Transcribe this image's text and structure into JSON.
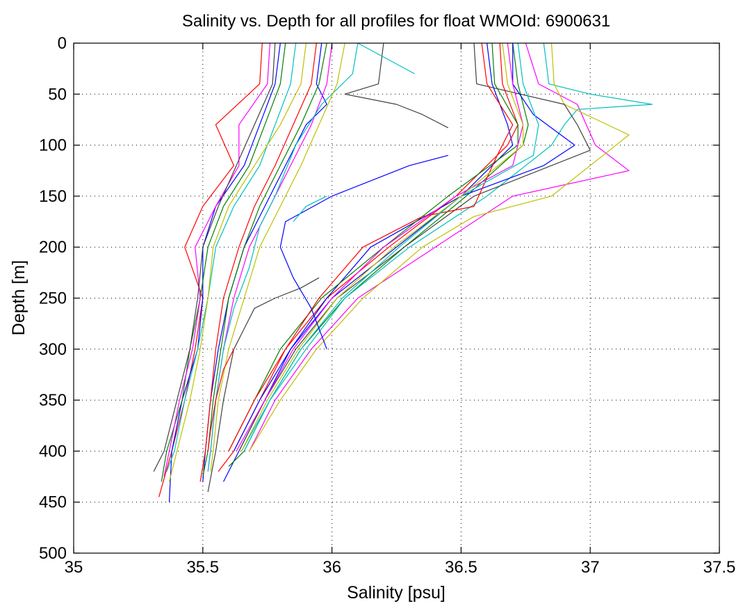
{
  "chart_data": {
    "type": "line",
    "title": "Salinity vs. Depth for all profiles for float WMOId: 6900631",
    "xlabel": "Salinity [psu]",
    "ylabel": "Depth [m]",
    "xlim": [
      35,
      37.5
    ],
    "ylim": [
      0,
      500
    ],
    "y_reversed": true,
    "grid": true,
    "x_ticks": [
      "35",
      "35.5",
      "36",
      "36.5",
      "37",
      "37.5"
    ],
    "y_ticks": [
      "0",
      "50",
      "100",
      "150",
      "200",
      "250",
      "300",
      "350",
      "400",
      "450",
      "500"
    ],
    "colors": [
      "#ff0000",
      "#0000ff",
      "#008000",
      "#ff00ff",
      "#00bfbf",
      "#bfbf00",
      "#404040"
    ],
    "series_note": "approximate digitized profiles (depth m, salinity psu)",
    "series": [
      {
        "color": "#ff0000",
        "depth": [
          0,
          40,
          80,
          120,
          160,
          200,
          250,
          300,
          350,
          400,
          445
        ],
        "sal": [
          35.73,
          35.72,
          35.55,
          35.62,
          35.5,
          35.43,
          35.5,
          35.47,
          35.43,
          35.38,
          35.33
        ]
      },
      {
        "color": "#0000ff",
        "depth": [
          0,
          40,
          80,
          120,
          160,
          200,
          250,
          300,
          350,
          400,
          450
        ],
        "sal": [
          35.8,
          35.78,
          35.72,
          35.66,
          35.55,
          35.5,
          35.5,
          35.48,
          35.42,
          35.38,
          35.37
        ]
      },
      {
        "color": "#008000",
        "depth": [
          0,
          40,
          80,
          120,
          160,
          200,
          250,
          300,
          350,
          400,
          430
        ],
        "sal": [
          35.82,
          35.8,
          35.74,
          35.68,
          35.58,
          35.52,
          35.49,
          35.45,
          35.42,
          35.36,
          35.34
        ]
      },
      {
        "color": "#ff00ff",
        "depth": [
          0,
          40,
          80,
          120,
          160,
          200,
          250,
          300,
          350,
          400,
          425
        ],
        "sal": [
          35.76,
          35.75,
          35.64,
          35.64,
          35.55,
          35.47,
          35.49,
          35.46,
          35.41,
          35.37,
          35.35
        ]
      },
      {
        "color": "#00bfbf",
        "depth": [
          0,
          40,
          80,
          120,
          160,
          200,
          250,
          300,
          350,
          400,
          420
        ],
        "sal": [
          35.86,
          35.84,
          35.78,
          35.72,
          35.62,
          35.55,
          35.52,
          35.48,
          35.43,
          35.39,
          35.36
        ]
      },
      {
        "color": "#bfbf00",
        "depth": [
          0,
          40,
          80,
          120,
          160,
          200,
          250,
          300,
          350,
          400,
          430
        ],
        "sal": [
          35.9,
          35.88,
          35.8,
          35.7,
          35.6,
          35.54,
          35.52,
          35.49,
          35.45,
          35.4,
          35.37
        ]
      },
      {
        "color": "#404040",
        "depth": [
          0,
          40,
          80,
          120,
          160,
          200,
          250,
          300,
          350,
          400,
          420
        ],
        "sal": [
          35.78,
          35.77,
          35.7,
          35.63,
          35.56,
          35.5,
          35.48,
          35.45,
          35.4,
          35.35,
          35.31
        ]
      },
      {
        "color": "#0000ff",
        "depth": [
          0,
          40,
          60,
          80,
          120,
          160,
          200,
          250,
          300,
          350,
          400,
          430
        ],
        "sal": [
          35.96,
          35.94,
          35.98,
          35.9,
          35.82,
          35.74,
          35.66,
          35.6,
          35.56,
          35.53,
          35.51,
          35.5
        ]
      },
      {
        "color": "#008000",
        "depth": [
          0,
          40,
          80,
          120,
          160,
          200,
          250,
          300,
          350,
          400,
          425
        ],
        "sal": [
          35.98,
          35.95,
          35.88,
          35.8,
          35.72,
          35.66,
          35.6,
          35.57,
          35.54,
          35.52,
          35.5
        ]
      },
      {
        "color": "#ff0000",
        "depth": [
          0,
          40,
          80,
          120,
          160,
          200,
          250,
          300,
          350,
          400,
          430
        ],
        "sal": [
          35.94,
          35.92,
          35.85,
          35.78,
          35.7,
          35.64,
          35.58,
          35.55,
          35.53,
          35.51,
          35.49
        ]
      },
      {
        "color": "#ff00ff",
        "depth": [
          0,
          40,
          80,
          120,
          160,
          200,
          250,
          300,
          350,
          400,
          420
        ],
        "sal": [
          36.0,
          35.98,
          35.92,
          35.84,
          35.76,
          35.68,
          35.62,
          35.58,
          35.55,
          35.53,
          35.52
        ]
      },
      {
        "color": "#00bfbf",
        "depth": [
          0,
          30,
          60,
          100,
          150,
          180,
          220,
          260,
          300,
          350,
          400,
          420
        ],
        "sal": [
          36.1,
          36.08,
          35.96,
          35.86,
          35.78,
          35.72,
          35.68,
          35.62,
          35.58,
          35.55,
          35.53,
          35.52
        ]
      },
      {
        "color": "#bfbf00",
        "depth": [
          0,
          40,
          80,
          120,
          160,
          200,
          250,
          300,
          350,
          400,
          420
        ],
        "sal": [
          36.05,
          36.02,
          35.95,
          35.88,
          35.8,
          35.72,
          35.66,
          35.6,
          35.56,
          35.54,
          35.53
        ]
      },
      {
        "color": "#404040",
        "depth": [
          0,
          40,
          50,
          60,
          70,
          83
        ],
        "sal": [
          36.2,
          36.18,
          36.05,
          36.25,
          36.35,
          36.45
        ]
      },
      {
        "color": "#404040",
        "depth": [
          230,
          240,
          250,
          260,
          280,
          300,
          350,
          400,
          440
        ],
        "sal": [
          35.95,
          35.88,
          35.78,
          35.7,
          35.66,
          35.62,
          35.58,
          35.55,
          35.52
        ]
      },
      {
        "color": "#00bfbf",
        "depth": [
          0,
          30
        ],
        "sal": [
          36.1,
          36.32
        ]
      },
      {
        "color": "#0000ff",
        "depth": [
          0,
          40,
          80,
          100,
          150,
          200,
          250,
          300,
          350,
          400,
          430
        ],
        "sal": [
          36.6,
          36.62,
          36.68,
          36.7,
          36.5,
          36.25,
          36.0,
          35.84,
          35.74,
          35.64,
          35.58
        ]
      },
      {
        "color": "#ff0000",
        "depth": [
          0,
          40,
          80,
          100,
          150,
          200,
          250,
          300,
          350,
          400,
          420
        ],
        "sal": [
          36.65,
          36.66,
          36.72,
          36.68,
          36.48,
          36.22,
          35.98,
          35.82,
          35.72,
          35.62,
          35.56
        ]
      },
      {
        "color": "#008000",
        "depth": [
          0,
          40,
          80,
          100,
          150,
          200,
          250,
          300,
          350,
          400,
          415
        ],
        "sal": [
          36.7,
          36.72,
          36.76,
          36.74,
          36.52,
          36.28,
          36.05,
          35.88,
          35.76,
          35.66,
          35.6
        ]
      },
      {
        "color": "#ff00ff",
        "depth": [
          0,
          40,
          60,
          100,
          125,
          150,
          200,
          250,
          300,
          350,
          400
        ],
        "sal": [
          36.75,
          36.8,
          36.95,
          37.02,
          37.15,
          36.7,
          36.4,
          36.1,
          35.92,
          35.78,
          35.68
        ]
      },
      {
        "color": "#00bfbf",
        "depth": [
          0,
          40,
          50,
          60,
          65,
          80,
          100,
          150,
          200,
          250,
          300,
          350,
          400
        ],
        "sal": [
          36.82,
          36.84,
          37.0,
          37.24,
          36.95,
          36.9,
          36.85,
          36.6,
          36.3,
          36.05,
          35.9,
          35.76,
          35.66
        ]
      },
      {
        "color": "#bfbf00",
        "depth": [
          0,
          40,
          60,
          90,
          110,
          150,
          170,
          200,
          250,
          300,
          350,
          400
        ],
        "sal": [
          36.85,
          36.86,
          36.9,
          37.15,
          37.05,
          36.85,
          36.55,
          36.35,
          36.12,
          35.94,
          35.8,
          35.68
        ]
      },
      {
        "color": "#404040",
        "depth": [
          0,
          40,
          60,
          80,
          105,
          130,
          150,
          200,
          250,
          300,
          350,
          400
        ],
        "sal": [
          36.55,
          36.56,
          36.9,
          36.95,
          37.0,
          36.75,
          36.55,
          36.28,
          36.02,
          35.86,
          35.74,
          35.64
        ]
      },
      {
        "color": "#0000ff",
        "depth": [
          0,
          40,
          70,
          100,
          120,
          150,
          200,
          250,
          300,
          350,
          400
        ],
        "sal": [
          36.7,
          36.7,
          36.78,
          36.94,
          36.82,
          36.5,
          36.15,
          35.98,
          35.84,
          35.72,
          35.62
        ]
      },
      {
        "color": "#008000",
        "depth": [
          0,
          40,
          80,
          100,
          150,
          200,
          250,
          300,
          350,
          400
        ],
        "sal": [
          36.62,
          36.63,
          36.72,
          36.72,
          36.45,
          36.2,
          35.96,
          35.8,
          35.7,
          35.6
        ]
      },
      {
        "color": "#ff0000",
        "depth": [
          0,
          40,
          80,
          110,
          160,
          170,
          200,
          250,
          300,
          350,
          400
        ],
        "sal": [
          36.58,
          36.6,
          36.7,
          36.64,
          36.55,
          36.35,
          36.12,
          35.95,
          35.82,
          35.7,
          35.6
        ]
      },
      {
        "color": "#ff00ff",
        "depth": [
          0,
          40,
          80,
          120,
          150,
          200,
          250,
          300,
          350,
          400
        ],
        "sal": [
          36.68,
          36.7,
          36.74,
          36.7,
          36.48,
          36.2,
          36.0,
          35.85,
          35.74,
          35.63
        ]
      },
      {
        "color": "#00bfbf",
        "depth": [
          0,
          40,
          80,
          110,
          150,
          200,
          250,
          300,
          350,
          400
        ],
        "sal": [
          36.72,
          36.74,
          36.8,
          36.78,
          36.5,
          36.26,
          36.04,
          35.88,
          35.76,
          35.65
        ]
      },
      {
        "color": "#bfbf00",
        "depth": [
          0,
          40,
          80,
          100,
          150,
          200,
          250,
          300,
          350,
          400
        ],
        "sal": [
          36.66,
          36.68,
          36.74,
          36.74,
          36.5,
          36.24,
          36.02,
          35.87,
          35.75,
          35.65
        ]
      },
      {
        "color": "#0000ff",
        "depth": [
          110,
          120,
          150,
          175,
          200,
          230,
          260,
          300
        ],
        "sal": [
          36.45,
          36.3,
          36.0,
          35.82,
          35.8,
          35.85,
          35.92,
          35.98
        ]
      },
      {
        "color": "#00bfbf",
        "depth": [
          150,
          160,
          175
        ],
        "sal": [
          35.98,
          35.9,
          35.85
        ]
      },
      {
        "color": "#ff0000",
        "depth": [
          300,
          320,
          350,
          380,
          400
        ],
        "sal": [
          35.62,
          35.58,
          35.55,
          35.53,
          35.52
        ]
      }
    ]
  }
}
